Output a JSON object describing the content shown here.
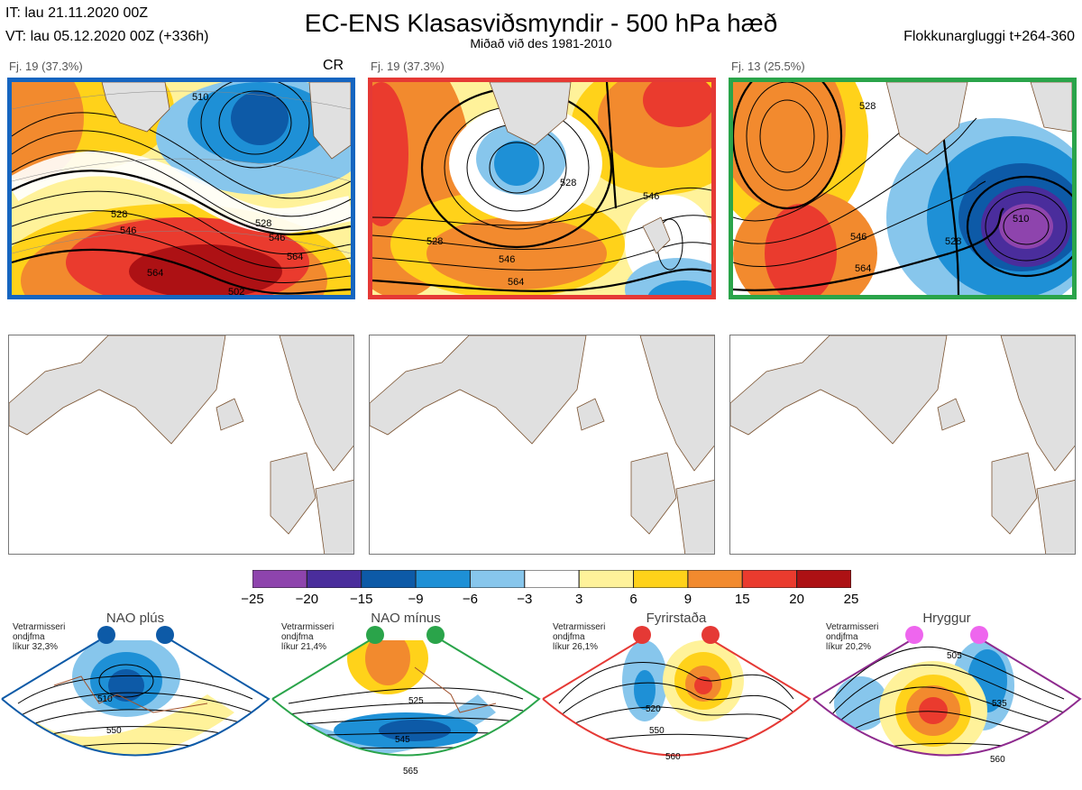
{
  "header": {
    "it_line": "IT: lau 21.11.2020 00Z",
    "vt_line": "VT: lau 05.12.2020 00Z  (+336h)",
    "title": "EC-ENS Klasasviðsmyndir - 500 hPa hæð",
    "subtitle": "Miðað við des 1981-2010",
    "window": "Flokkunargluggi t+264-360"
  },
  "panels": [
    {
      "label": "Fj. 19 (37.3%)",
      "marker": "CR",
      "border_color": "#1565c0",
      "contour_labels": [
        "510",
        "528",
        "546",
        "564",
        "528",
        "546",
        "564",
        "502"
      ]
    },
    {
      "label": "Fj. 19 (37.3%)",
      "marker": "",
      "border_color": "#e53935",
      "contour_labels": [
        "528",
        "546",
        "564",
        "528",
        "546"
      ]
    },
    {
      "label": "Fj. 13 (25.5%)",
      "marker": "",
      "border_color": "#2aa44a",
      "contour_labels": [
        "528",
        "546",
        "564",
        "510",
        "528"
      ]
    }
  ],
  "colorbar": {
    "ticks": [
      "−25",
      "−20",
      "−15",
      "−9",
      "−6",
      "−3",
      "3",
      "6",
      "9",
      "15",
      "20",
      "25"
    ],
    "colors": [
      "#8e44ad",
      "#4a2d9c",
      "#0d5aa7",
      "#1e90d6",
      "#87c6ec",
      "#ffffff",
      "#fff29a",
      "#ffd21a",
      "#f28a2e",
      "#ea3b2e",
      "#ad1114"
    ]
  },
  "regimes": [
    {
      "name": "NAO plús",
      "note": [
        "Vetrarmisseri",
        "ondjfma",
        "líkur 32,3%"
      ],
      "color": "#0d5aa7",
      "contour_labels": [
        "510",
        "550"
      ]
    },
    {
      "name": "NAO mínus",
      "note": [
        "Vetrarmisseri",
        "ondjfma",
        "líkur 21,4%"
      ],
      "color": "#2aa44a",
      "contour_labels": [
        "525",
        "545",
        "565"
      ]
    },
    {
      "name": "Fyrirstaða",
      "note": [
        "Vetrarmisseri",
        "ondjfma",
        "líkur 26,1%"
      ],
      "color": "#e53935",
      "contour_labels": [
        "520",
        "550",
        "560"
      ]
    },
    {
      "name": "Hryggur",
      "note": [
        "Vetrarmisseri",
        "ondjfma",
        "líkur 20,2%"
      ],
      "color": "#ee66ee",
      "border_color": "#8e2a8e",
      "contour_labels": [
        "505",
        "535",
        "560"
      ]
    }
  ]
}
